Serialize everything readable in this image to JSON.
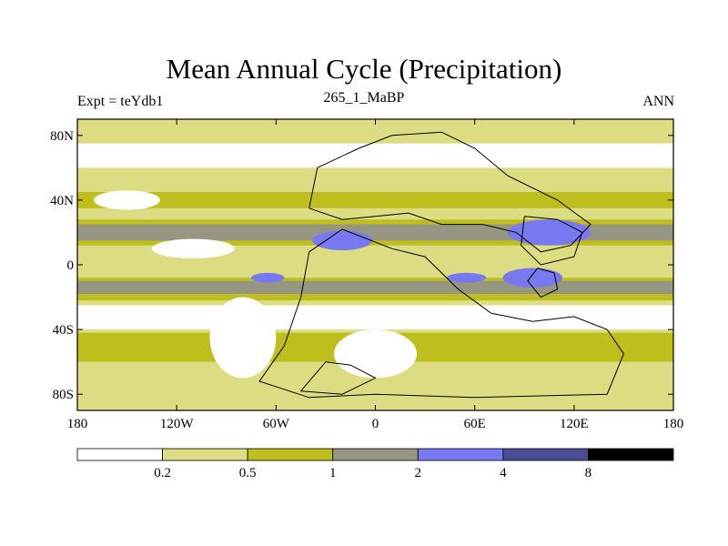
{
  "chart_data": {
    "type": "heatmap",
    "title": "Mean Annual Cycle (Precipitation)",
    "left_label": "Expt = teYdb1",
    "center_label": "265_1_MaBP",
    "right_label": "ANN",
    "xlim": [
      -180,
      180
    ],
    "ylim": [
      -90,
      90
    ],
    "x_ticks": [
      {
        "value": -180,
        "label": "180"
      },
      {
        "value": -120,
        "label": "120W"
      },
      {
        "value": -60,
        "label": "60W"
      },
      {
        "value": 0,
        "label": "0"
      },
      {
        "value": 60,
        "label": "60E"
      },
      {
        "value": 120,
        "label": "120E"
      },
      {
        "value": 180,
        "label": "180"
      }
    ],
    "y_ticks": [
      {
        "value": 80,
        "label": "80N"
      },
      {
        "value": 40,
        "label": "40N"
      },
      {
        "value": 0,
        "label": "0"
      },
      {
        "value": -40,
        "label": "40S"
      },
      {
        "value": -80,
        "label": "80S"
      }
    ],
    "colorbar": {
      "levels": [
        "0.2",
        "0.5",
        "1",
        "2",
        "4",
        "8"
      ],
      "colors": [
        "#ffffff",
        "#dcdc82",
        "#bebe1e",
        "#969682",
        "#7878f0",
        "#4b4b96",
        "#000000"
      ]
    },
    "bands": [
      {
        "lat_range": [
          75,
          90
        ],
        "level": 1
      },
      {
        "lat_range": [
          60,
          75
        ],
        "level": 0
      },
      {
        "lat_range": [
          32,
          50
        ],
        "level": 1
      },
      {
        "lat_range": [
          35,
          45
        ],
        "level": 2
      },
      {
        "lat_range": [
          12,
          28
        ],
        "level": 2
      },
      {
        "lat_range": [
          15,
          25
        ],
        "level": 3
      },
      {
        "lat_range": [
          -5,
          5
        ],
        "level": 1
      },
      {
        "lat_range": [
          -22,
          -8
        ],
        "level": 2
      },
      {
        "lat_range": [
          -18,
          -10
        ],
        "level": 3
      },
      {
        "lat_range": [
          -40,
          -25
        ],
        "level": 0
      },
      {
        "lat_range": [
          -60,
          -42
        ],
        "level": 2
      },
      {
        "lat_range": [
          -80,
          -60
        ],
        "level": 1
      },
      {
        "lat_range": [
          -90,
          -84
        ],
        "level": 1
      }
    ],
    "blobs": [
      {
        "lon": -20,
        "lat": 15,
        "rx": 18,
        "ry": 6,
        "level": 4
      },
      {
        "lon": 105,
        "lat": 20,
        "rx": 25,
        "ry": 8,
        "level": 4
      },
      {
        "lon": 95,
        "lat": -8,
        "rx": 18,
        "ry": 6,
        "level": 4
      },
      {
        "lon": -65,
        "lat": -8,
        "rx": 10,
        "ry": 3,
        "level": 4
      },
      {
        "lon": 55,
        "lat": -8,
        "rx": 12,
        "ry": 3,
        "level": 4
      },
      {
        "lon": -80,
        "lat": -45,
        "rx": 20,
        "ry": 25,
        "level": 0
      },
      {
        "lon": 0,
        "lat": -55,
        "rx": 25,
        "ry": 15,
        "level": 0
      },
      {
        "lon": -150,
        "lat": 40,
        "rx": 20,
        "ry": 6,
        "level": 0
      },
      {
        "lon": -110,
        "lat": 10,
        "rx": 25,
        "ry": 6,
        "level": 0
      }
    ],
    "coastlines": [
      {
        "name": "laurasia",
        "points": [
          [
            -40,
            35
          ],
          [
            -35,
            60
          ],
          [
            -10,
            72
          ],
          [
            10,
            80
          ],
          [
            40,
            82
          ],
          [
            60,
            72
          ],
          [
            80,
            55
          ],
          [
            110,
            40
          ],
          [
            130,
            25
          ],
          [
            118,
            12
          ],
          [
            100,
            8
          ],
          [
            85,
            20
          ],
          [
            65,
            25
          ],
          [
            40,
            25
          ],
          [
            20,
            32
          ],
          [
            0,
            30
          ],
          [
            -20,
            28
          ],
          [
            -40,
            35
          ]
        ]
      },
      {
        "name": "gondwana",
        "points": [
          [
            -40,
            8
          ],
          [
            -20,
            22
          ],
          [
            10,
            10
          ],
          [
            30,
            5
          ],
          [
            50,
            -15
          ],
          [
            70,
            -30
          ],
          [
            95,
            -35
          ],
          [
            120,
            -32
          ],
          [
            140,
            -40
          ],
          [
            150,
            -55
          ],
          [
            140,
            -80
          ],
          [
            60,
            -82
          ],
          [
            0,
            -80
          ],
          [
            -40,
            -82
          ],
          [
            -70,
            -72
          ],
          [
            -55,
            -50
          ],
          [
            -45,
            -20
          ],
          [
            -40,
            8
          ]
        ]
      },
      {
        "name": "antarctic-peninsula",
        "points": [
          [
            -30,
            -60
          ],
          [
            -15,
            -62
          ],
          [
            0,
            -70
          ],
          [
            -20,
            -80
          ],
          [
            -45,
            -78
          ],
          [
            -30,
            -60
          ]
        ]
      },
      {
        "name": "asia-block",
        "points": [
          [
            90,
            30
          ],
          [
            110,
            28
          ],
          [
            125,
            20
          ],
          [
            120,
            5
          ],
          [
            100,
            0
          ],
          [
            88,
            12
          ],
          [
            90,
            30
          ]
        ]
      },
      {
        "name": "east-block",
        "points": [
          [
            98,
            -2
          ],
          [
            108,
            -5
          ],
          [
            110,
            -15
          ],
          [
            100,
            -20
          ],
          [
            92,
            -10
          ],
          [
            98,
            -2
          ]
        ]
      }
    ]
  }
}
